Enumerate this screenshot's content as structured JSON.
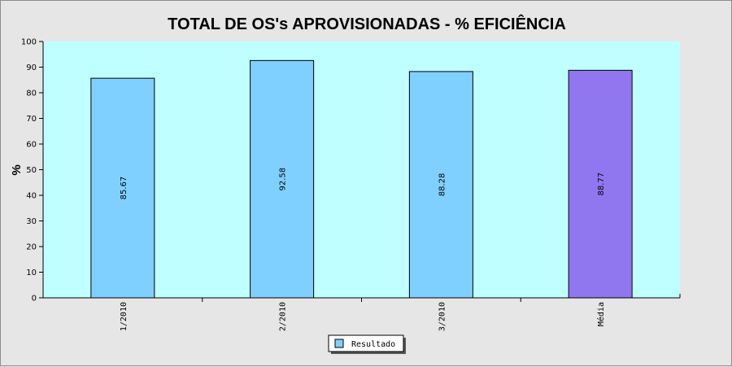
{
  "chart_data": {
    "type": "bar",
    "title": "TOTAL DE OS's APROVISIONADAS - % EFICIÊNCIA",
    "ylabel": "%",
    "xlabel": "",
    "ylim": [
      0,
      100
    ],
    "yticks": [
      0,
      10,
      20,
      30,
      40,
      50,
      60,
      70,
      80,
      90,
      100
    ],
    "categories": [
      "1/2010",
      "2/2010",
      "3/2010",
      "Média"
    ],
    "values": [
      85.67,
      92.58,
      88.28,
      88.77
    ],
    "value_labels": [
      "85.67",
      "92.58",
      "88.28",
      "88.77"
    ],
    "bar_colors": [
      "#80d0ff",
      "#80d0ff",
      "#80d0ff",
      "#9077f0"
    ],
    "plot_background": "#c0ffff",
    "legend": {
      "placement": "bottom-center",
      "entries": [
        {
          "name": "Resultado",
          "color": "#80d0ff"
        }
      ]
    },
    "grid": false
  }
}
